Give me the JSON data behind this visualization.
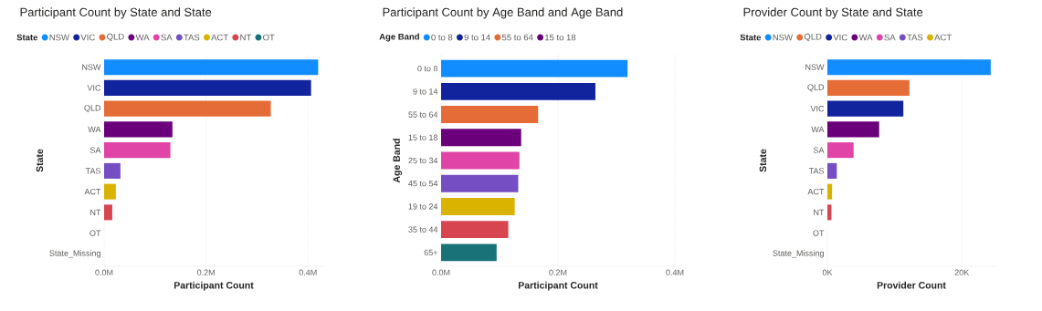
{
  "chart_data": [
    {
      "type": "bar",
      "orientation": "horizontal",
      "title": "Participant Count by State and State",
      "xlabel": "Participant Count",
      "ylabel": "State",
      "legend_title": "State",
      "grid": "x",
      "categories": [
        "NSW",
        "VIC",
        "QLD",
        "WA",
        "SA",
        "TAS",
        "ACT",
        "NT",
        "OT",
        "State_Missing"
      ],
      "values": [
        420000,
        406000,
        327000,
        134000,
        130000,
        32000,
        23000,
        16000,
        0,
        0
      ],
      "colors": [
        "#118dff",
        "#12239e",
        "#e66c37",
        "#6b007b",
        "#e044a7",
        "#744ec2",
        "#d9b300",
        "#d64550",
        "#197278",
        "#1aab40"
      ],
      "xlim": [
        0,
        430000
      ],
      "xticks": [
        {
          "value": 0,
          "label": "0.0M"
        },
        {
          "value": 200000,
          "label": "0.2M"
        },
        {
          "value": 400000,
          "label": "0.4M"
        }
      ]
    },
    {
      "type": "bar",
      "orientation": "horizontal",
      "title": "Participant Count by Age Band and Age Band",
      "xlabel": "Participant Count",
      "ylabel": "Age Band",
      "legend_title": "Age Band",
      "grid": "x",
      "categories": [
        "0 to 8",
        "9 to 14",
        "55 to 64",
        "15 to 18",
        "25 to 34",
        "45 to 54",
        "19 to 24",
        "35 to 44",
        "65+"
      ],
      "values": [
        319000,
        264000,
        166000,
        137000,
        134000,
        132000,
        126000,
        115000,
        95000
      ],
      "colors": [
        "#118dff",
        "#12239e",
        "#e66c37",
        "#6b007b",
        "#e044a7",
        "#744ec2",
        "#d9b300",
        "#d64550",
        "#197278"
      ],
      "xlim": [
        0,
        400000
      ],
      "xticks": [
        {
          "value": 0,
          "label": "0.0M"
        },
        {
          "value": 200000,
          "label": "0.2M"
        },
        {
          "value": 400000,
          "label": "0.4M"
        }
      ]
    },
    {
      "type": "bar",
      "orientation": "horizontal",
      "title": "Provider Count by State and State",
      "xlabel": "Provider Count",
      "ylabel": "State",
      "legend_title": "State",
      "grid": "x",
      "categories": [
        "NSW",
        "QLD",
        "VIC",
        "WA",
        "SA",
        "TAS",
        "ACT",
        "NT",
        "OT",
        "State_Missing"
      ],
      "values": [
        24300,
        12200,
        11300,
        7700,
        3900,
        1400,
        700,
        600,
        0,
        0
      ],
      "colors": [
        "#118dff",
        "#e66c37",
        "#12239e",
        "#6b007b",
        "#e044a7",
        "#744ec2",
        "#d9b300",
        "#d64550",
        "#197278",
        "#1aab40"
      ],
      "xlim": [
        0,
        25000
      ],
      "xticks": [
        {
          "value": 0,
          "label": "0K"
        },
        {
          "value": 20000,
          "label": "20K"
        }
      ]
    }
  ]
}
